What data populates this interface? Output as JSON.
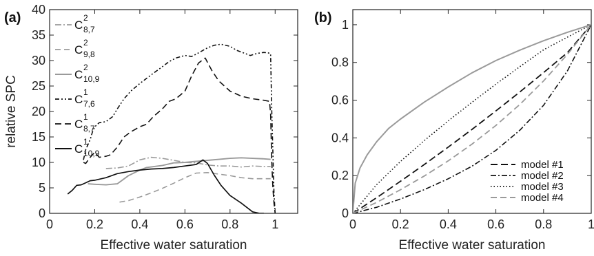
{
  "chart_data": [
    {
      "type": "line",
      "panel_label": "(a)",
      "xlabel": "Effective water saturation",
      "ylabel": "relative SPC",
      "xlim": [
        0,
        1.1
      ],
      "ylim": [
        0,
        40
      ],
      "xticks": [
        0,
        0.2,
        0.4,
        0.6,
        0.8,
        1
      ],
      "xtick_labels": [
        "0",
        "0.2",
        "0.4",
        "0.6",
        "0.8",
        "1"
      ],
      "yticks": [
        0,
        5,
        10,
        15,
        20,
        25,
        30,
        35,
        40
      ],
      "ytick_labels": [
        "0",
        "5",
        "10",
        "15",
        "20",
        "25",
        "30",
        "35",
        "40"
      ],
      "grid": false,
      "legend_position": "top-left",
      "series": [
        {
          "name": "C",
          "sup": "2",
          "sub": "8,7",
          "color": "#9a9a9a",
          "dash": "9 3 2 3",
          "width": 1.6,
          "x": [
            0.25,
            0.3,
            0.35,
            0.4,
            0.45,
            0.5,
            0.55,
            0.6,
            0.65,
            0.7,
            0.75,
            0.8,
            0.85,
            0.9,
            0.95,
            0.98
          ],
          "y": [
            8.8,
            8.9,
            9.3,
            10.5,
            11.0,
            10.8,
            10.4,
            10.0,
            9.9,
            9.5,
            9.3,
            9.3,
            9.1,
            9.3,
            9.2,
            9.2
          ]
        },
        {
          "name": "C",
          "sup": "2",
          "sub": "9,8",
          "color": "#9a9a9a",
          "dash": "8 5",
          "width": 1.6,
          "x": [
            0.31,
            0.35,
            0.4,
            0.45,
            0.5,
            0.55,
            0.6,
            0.65,
            0.7,
            0.75,
            0.8,
            0.85,
            0.9,
            0.95,
            0.98
          ],
          "y": [
            2.2,
            2.5,
            3.2,
            4.0,
            4.9,
            5.9,
            7.0,
            7.9,
            8.0,
            7.7,
            7.4,
            7.0,
            6.8,
            6.8,
            6.8
          ]
        },
        {
          "name": "C",
          "sup": "2",
          "sub": "10,9",
          "color": "#9a9a9a",
          "dash": "",
          "width": 1.9,
          "x": [
            0.17,
            0.2,
            0.25,
            0.3,
            0.35,
            0.4,
            0.43,
            0.5,
            0.55,
            0.6,
            0.65,
            0.7,
            0.75,
            0.8,
            0.85,
            0.9,
            0.95,
            0.98
          ],
          "y": [
            5.8,
            5.7,
            5.6,
            5.8,
            7.4,
            8.5,
            9.0,
            9.4,
            9.9,
            10.0,
            10.2,
            10.4,
            10.6,
            10.8,
            10.9,
            10.8,
            10.7,
            10.6
          ]
        },
        {
          "name": "C",
          "sup": "1",
          "sub": "7,6",
          "color": "#111111",
          "dash": "6 3 2 3 2 3",
          "width": 1.6,
          "x": [
            0.15,
            0.16,
            0.18,
            0.19,
            0.2,
            0.22,
            0.25,
            0.28,
            0.3,
            0.33,
            0.36,
            0.4,
            0.43,
            0.46,
            0.5,
            0.53,
            0.56,
            0.6,
            0.63,
            0.66,
            0.7,
            0.73,
            0.76,
            0.8,
            0.83,
            0.86,
            0.89,
            0.92,
            0.95,
            0.97,
            0.98,
            0.985,
            0.99,
            0.995,
            1.0
          ],
          "y": [
            10.5,
            12.5,
            14.5,
            16.0,
            17.0,
            17.8,
            18.0,
            19.0,
            20.5,
            22.5,
            24.0,
            25.5,
            26.5,
            27.5,
            28.8,
            29.8,
            30.5,
            31.0,
            30.8,
            31.5,
            32.5,
            33.0,
            33.2,
            32.8,
            32.0,
            31.5,
            31.0,
            31.4,
            31.6,
            31.5,
            31.3,
            20.0,
            12.0,
            4.0,
            0.0
          ]
        },
        {
          "name": "C",
          "sup": "1",
          "sub": "8,7",
          "color": "#111111",
          "dash": "9 5",
          "width": 1.6,
          "x": [
            0.15,
            0.16,
            0.18,
            0.2,
            0.22,
            0.25,
            0.27,
            0.3,
            0.33,
            0.36,
            0.4,
            0.43,
            0.46,
            0.5,
            0.53,
            0.56,
            0.6,
            0.63,
            0.66,
            0.69,
            0.72,
            0.75,
            0.8,
            0.85,
            0.9,
            0.95,
            0.975,
            0.98,
            0.985,
            0.99,
            0.995,
            1.0
          ],
          "y": [
            10.0,
            9.8,
            11.0,
            12.0,
            11.0,
            11.2,
            11.5,
            13.0,
            15.0,
            16.0,
            17.0,
            17.5,
            19.0,
            20.5,
            22.0,
            22.5,
            24.0,
            27.0,
            29.5,
            30.5,
            28.0,
            26.0,
            24.0,
            23.0,
            22.5,
            22.2,
            22.0,
            19.5,
            10.0,
            5.0,
            2.0,
            0.0
          ]
        },
        {
          "name": "C",
          "sup": "1",
          "sub": "10,9",
          "color": "#111111",
          "dash": "",
          "width": 1.7,
          "x": [
            0.08,
            0.1,
            0.12,
            0.14,
            0.16,
            0.18,
            0.2,
            0.25,
            0.3,
            0.35,
            0.4,
            0.45,
            0.5,
            0.55,
            0.6,
            0.65,
            0.68,
            0.7,
            0.73,
            0.76,
            0.8,
            0.85,
            0.9,
            0.93,
            0.95
          ],
          "y": [
            3.8,
            4.5,
            5.5,
            5.6,
            6.0,
            6.4,
            6.5,
            7.0,
            7.8,
            8.2,
            8.5,
            8.7,
            8.8,
            9.0,
            9.3,
            9.6,
            10.5,
            9.8,
            7.5,
            5.5,
            3.5,
            2.0,
            0.3,
            0.0,
            0.0
          ]
        }
      ]
    },
    {
      "type": "line",
      "panel_label": "(b)",
      "xlabel": "Effective water saturation",
      "ylabel": "",
      "xlim": [
        0,
        1
      ],
      "ylim": [
        0,
        1.08
      ],
      "xticks": [
        0,
        0.2,
        0.4,
        0.6,
        0.8,
        1
      ],
      "xtick_labels": [
        "0",
        "0.2",
        "0.4",
        "0.6",
        "0.8",
        "1"
      ],
      "yticks": [
        0,
        0.2,
        0.4,
        0.6,
        0.8,
        1
      ],
      "ytick_labels": [
        "0",
        "0.2",
        "0.4",
        "0.6",
        "0.8",
        "1"
      ],
      "grid": false,
      "legend_position": "bottom-right",
      "series": [
        {
          "name": "model #1",
          "color": "#111111",
          "dash": "10 5",
          "width": 1.8,
          "x": [
            0,
            0.1,
            0.2,
            0.3,
            0.4,
            0.5,
            0.6,
            0.7,
            0.8,
            0.9,
            1.0
          ],
          "y": [
            0,
            0.083,
            0.17,
            0.259,
            0.351,
            0.445,
            0.543,
            0.643,
            0.746,
            0.852,
            1.0
          ]
        },
        {
          "name": "model #2",
          "color": "#111111",
          "dash": "8 3 2 3",
          "width": 1.6,
          "x": [
            0,
            0.1,
            0.2,
            0.3,
            0.4,
            0.5,
            0.6,
            0.7,
            0.8,
            0.9,
            1.0
          ],
          "y": [
            0,
            0.032,
            0.076,
            0.126,
            0.183,
            0.25,
            0.334,
            0.44,
            0.573,
            0.755,
            1.0
          ]
        },
        {
          "name": "model #3",
          "color": "#111111",
          "dash": "1.5 3",
          "width": 1.6,
          "x": [
            0,
            0.1,
            0.2,
            0.3,
            0.4,
            0.5,
            0.6,
            0.7,
            0.8,
            0.9,
            1.0
          ],
          "y": [
            0,
            0.152,
            0.275,
            0.386,
            0.49,
            0.589,
            0.685,
            0.777,
            0.867,
            0.934,
            1.0
          ]
        },
        {
          "name": "model #4",
          "color": "#9a9a9a",
          "dash": "9 5",
          "width": 1.8,
          "x": [
            0,
            0.1,
            0.2,
            0.3,
            0.4,
            0.5,
            0.6,
            0.7,
            0.8,
            0.9,
            1.0
          ],
          "y": [
            0,
            0.058,
            0.125,
            0.198,
            0.278,
            0.367,
            0.466,
            0.577,
            0.702,
            0.843,
            1.0
          ]
        },
        {
          "name": "",
          "color": "#9a9a9a",
          "dash": "",
          "width": 2.0,
          "x": [
            0,
            0.01,
            0.03,
            0.06,
            0.1,
            0.15,
            0.2,
            0.3,
            0.4,
            0.5,
            0.6,
            0.7,
            0.8,
            0.9,
            1.0
          ],
          "y": [
            0,
            0.16,
            0.24,
            0.31,
            0.38,
            0.45,
            0.5,
            0.59,
            0.67,
            0.745,
            0.81,
            0.865,
            0.915,
            0.96,
            1.0
          ]
        }
      ]
    }
  ]
}
